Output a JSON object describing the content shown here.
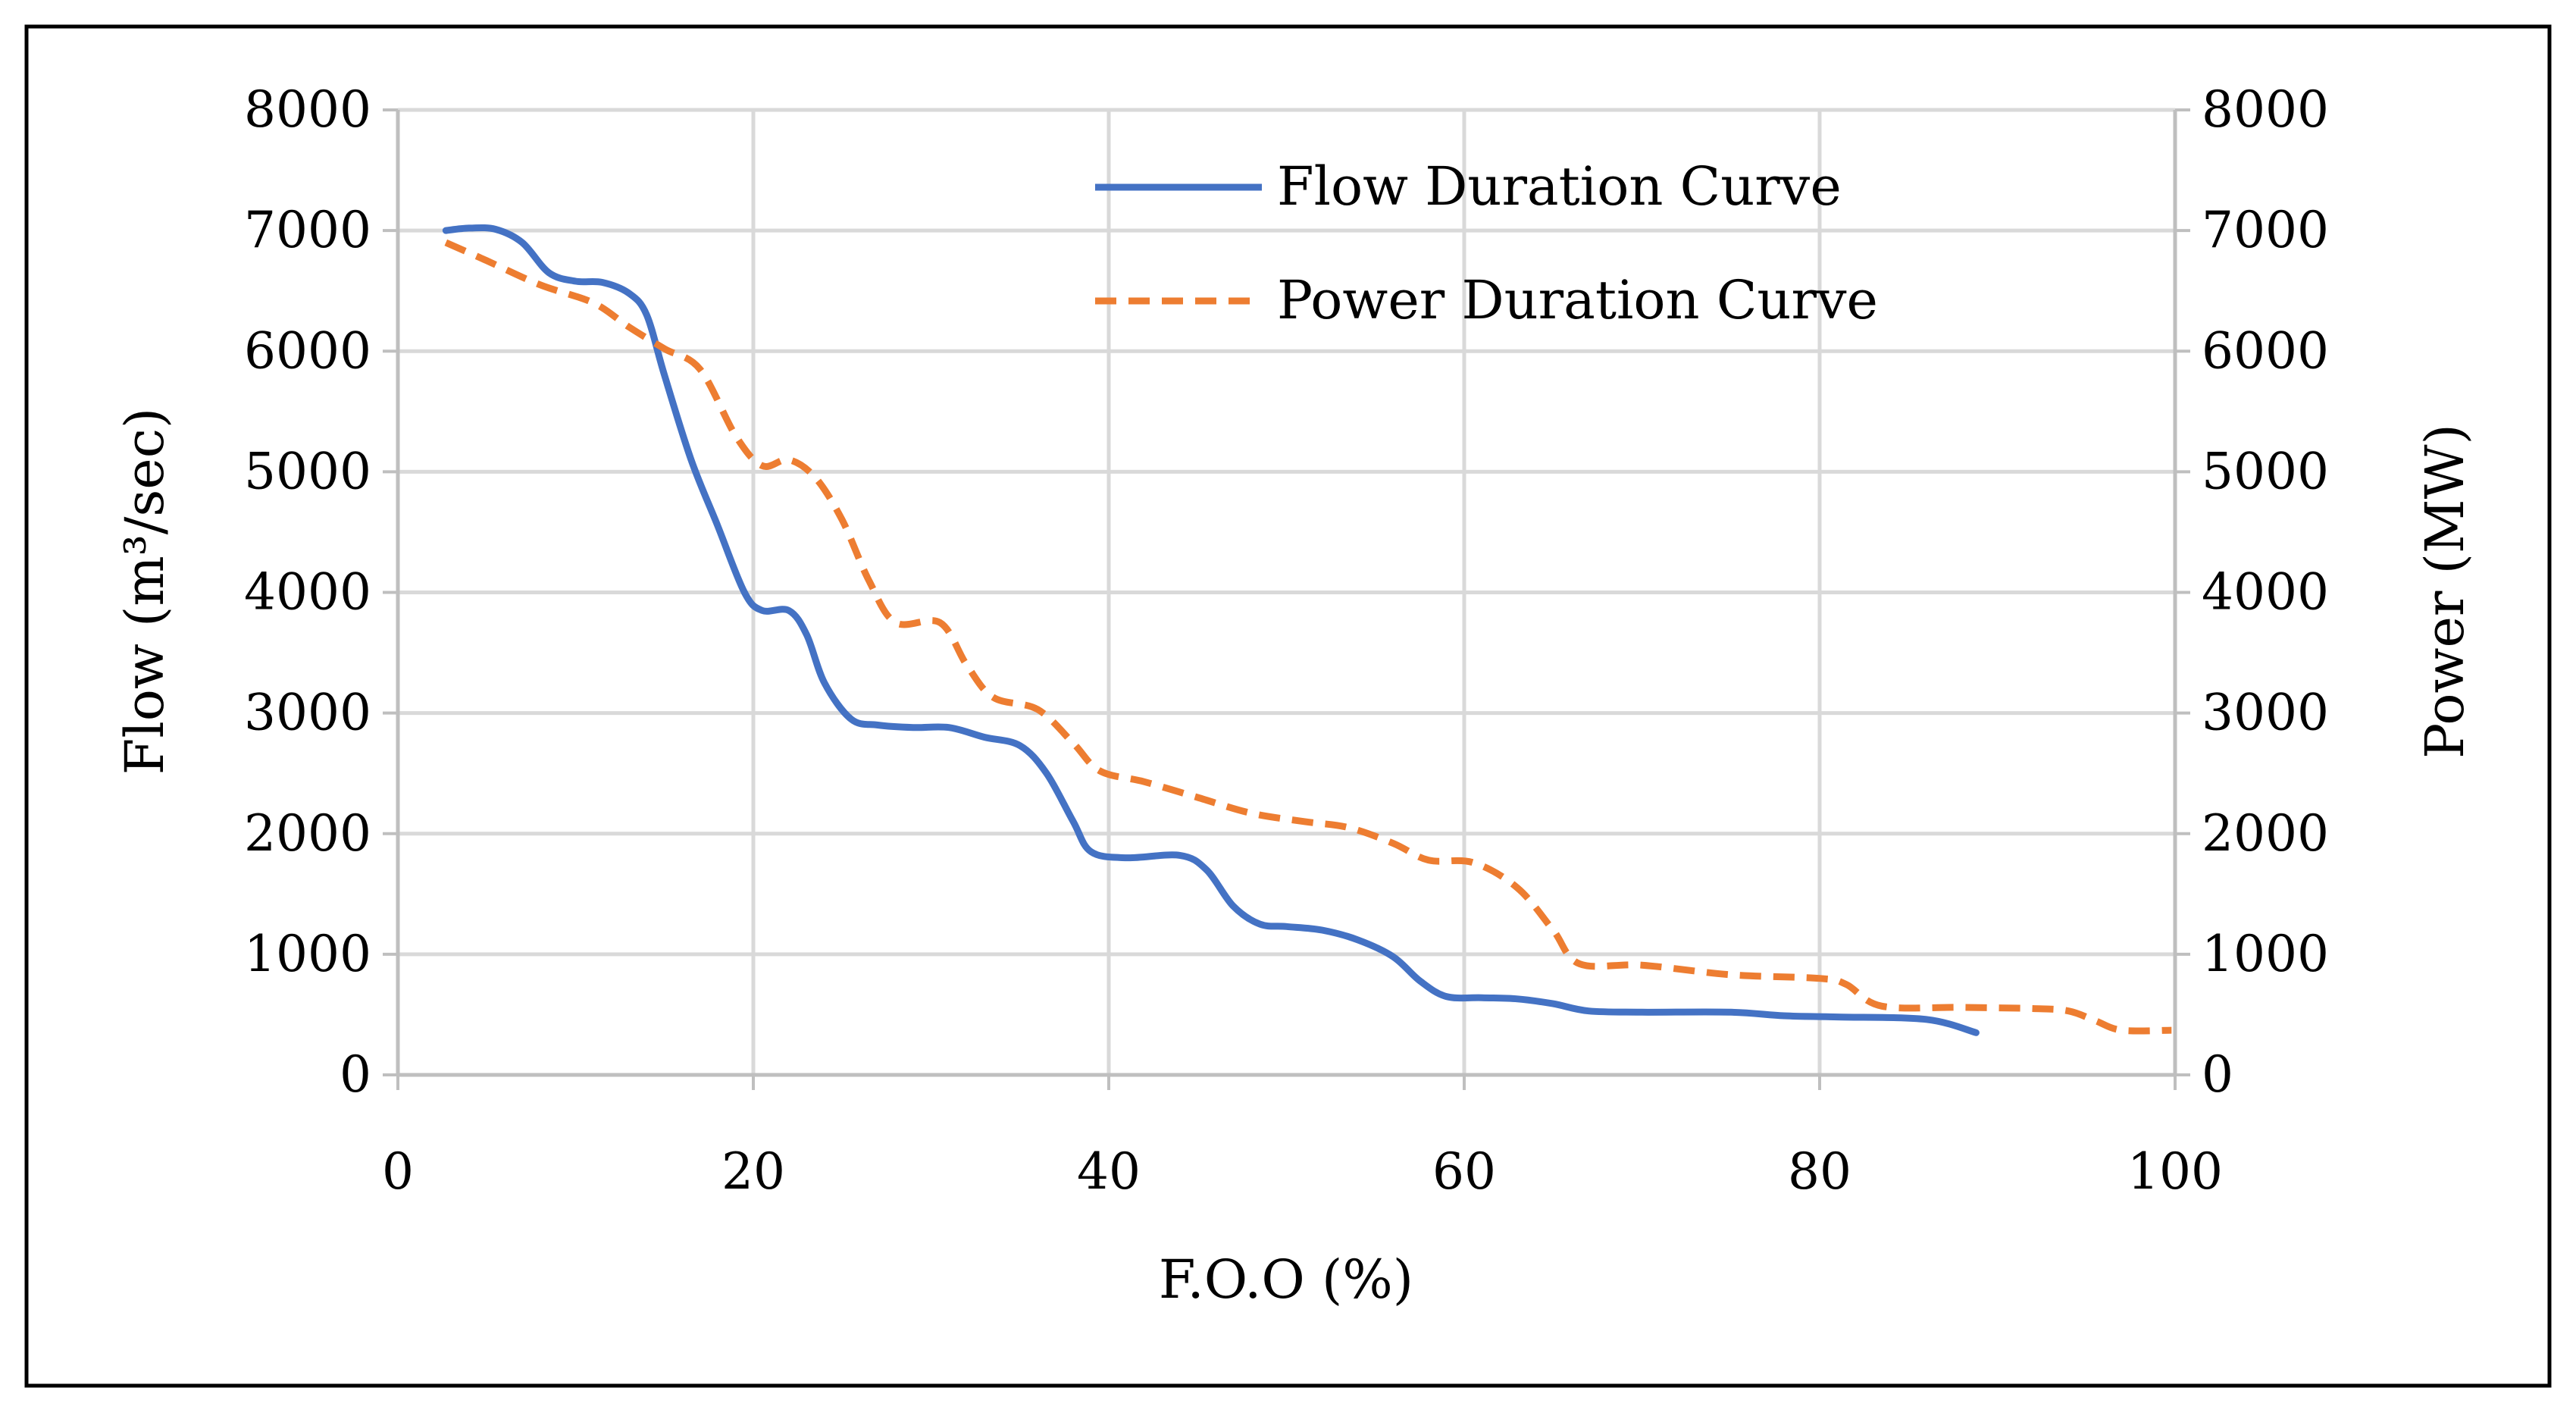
{
  "chart_data": {
    "type": "line",
    "xlabel": "F.O.O (%)",
    "ylabel_left": "Flow (m³/sec)",
    "ylabel_right": "Power (MW)",
    "xlim": [
      0,
      100
    ],
    "ylim_left": [
      0,
      8000
    ],
    "ylim_right": [
      0,
      8000
    ],
    "x_ticks": [
      "0",
      "20",
      "40",
      "60",
      "80",
      "100"
    ],
    "y_ticks_left": [
      "0",
      "1000",
      "2000",
      "3000",
      "4000",
      "5000",
      "6000",
      "7000",
      "8000"
    ],
    "y_ticks_right": [
      "0",
      "1000",
      "2000",
      "3000",
      "4000",
      "5000",
      "6000",
      "7000",
      "8000"
    ],
    "grid": true,
    "legend_position": "top-right",
    "series": [
      {
        "name": "Flow Duration Curve",
        "axis": "left",
        "style": "solid",
        "color": "#4472C4",
        "points": [
          [
            2.7,
            7000
          ],
          [
            4.0,
            7020
          ],
          [
            5.5,
            7010
          ],
          [
            7.0,
            6900
          ],
          [
            8.5,
            6650
          ],
          [
            10.0,
            6580
          ],
          [
            11.5,
            6570
          ],
          [
            13.0,
            6480
          ],
          [
            14.0,
            6300
          ],
          [
            15.0,
            5800
          ],
          [
            16.5,
            5100
          ],
          [
            18.0,
            4550
          ],
          [
            19.5,
            4000
          ],
          [
            20.5,
            3850
          ],
          [
            22.0,
            3850
          ],
          [
            23.0,
            3650
          ],
          [
            24.0,
            3250
          ],
          [
            25.5,
            2950
          ],
          [
            27.0,
            2900
          ],
          [
            29.0,
            2880
          ],
          [
            31.0,
            2880
          ],
          [
            33.0,
            2800
          ],
          [
            35.0,
            2730
          ],
          [
            36.5,
            2500
          ],
          [
            38.0,
            2100
          ],
          [
            39.0,
            1850
          ],
          [
            41.0,
            1800
          ],
          [
            44.0,
            1820
          ],
          [
            45.5,
            1700
          ],
          [
            47.0,
            1400
          ],
          [
            48.5,
            1250
          ],
          [
            50.0,
            1230
          ],
          [
            52.0,
            1200
          ],
          [
            54.0,
            1120
          ],
          [
            56.0,
            980
          ],
          [
            57.5,
            780
          ],
          [
            59.0,
            650
          ],
          [
            61.0,
            640
          ],
          [
            63.0,
            630
          ],
          [
            65.0,
            590
          ],
          [
            67.0,
            530
          ],
          [
            70.0,
            520
          ],
          [
            75.0,
            520
          ],
          [
            78.0,
            490
          ],
          [
            81.0,
            480
          ],
          [
            86.0,
            460
          ],
          [
            88.8,
            350
          ]
        ]
      },
      {
        "name": "Power Duration Curve",
        "axis": "right",
        "style": "dashed",
        "color": "#ED7D31",
        "points": [
          [
            2.7,
            6900
          ],
          [
            5.0,
            6750
          ],
          [
            8.0,
            6550
          ],
          [
            11.0,
            6400
          ],
          [
            13.0,
            6200
          ],
          [
            15.0,
            6020
          ],
          [
            17.0,
            5850
          ],
          [
            19.0,
            5300
          ],
          [
            20.5,
            5050
          ],
          [
            22.0,
            5100
          ],
          [
            23.5,
            4950
          ],
          [
            25.0,
            4600
          ],
          [
            26.5,
            4100
          ],
          [
            28.0,
            3750
          ],
          [
            30.5,
            3750
          ],
          [
            32.0,
            3400
          ],
          [
            33.5,
            3130
          ],
          [
            36.0,
            3030
          ],
          [
            38.0,
            2750
          ],
          [
            39.5,
            2520
          ],
          [
            42.0,
            2430
          ],
          [
            45.0,
            2300
          ],
          [
            48.0,
            2170
          ],
          [
            51.0,
            2100
          ],
          [
            53.5,
            2050
          ],
          [
            56.0,
            1920
          ],
          [
            58.0,
            1780
          ],
          [
            60.5,
            1760
          ],
          [
            63.0,
            1550
          ],
          [
            65.0,
            1200
          ],
          [
            66.5,
            920
          ],
          [
            70.0,
            910
          ],
          [
            75.0,
            830
          ],
          [
            80.0,
            800
          ],
          [
            81.5,
            750
          ],
          [
            83.5,
            570
          ],
          [
            88.0,
            560
          ],
          [
            92.0,
            550
          ],
          [
            94.0,
            530
          ],
          [
            95.5,
            450
          ],
          [
            97.0,
            370
          ],
          [
            99.8,
            370
          ]
        ]
      }
    ]
  }
}
